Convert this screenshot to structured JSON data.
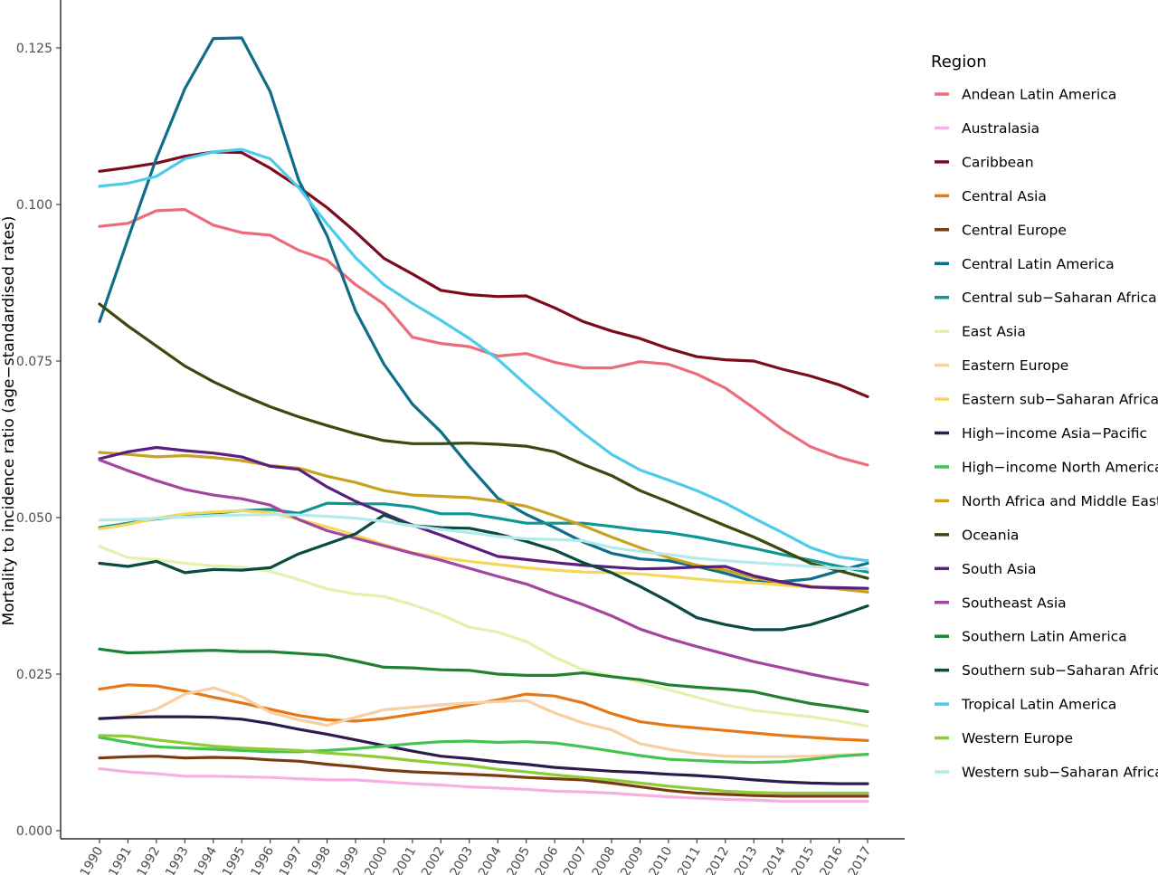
{
  "chart_data": {
    "type": "line",
    "title": "",
    "xlabel": "",
    "ylabel": "Mortality to incidence ratio (age−standardised rates)",
    "ylim": [
      0,
      0.13
    ],
    "yticks": [
      "0.000",
      "0.025",
      "0.050",
      "0.075",
      "0.100",
      "0.125"
    ],
    "ytick_values": [
      0,
      0.025,
      0.05,
      0.075,
      0.1,
      0.125
    ],
    "x": [
      "1990",
      "1991",
      "1992",
      "1993",
      "1994",
      "1995",
      "1996",
      "1997",
      "1998",
      "1999",
      "2000",
      "2001",
      "2002",
      "2003",
      "2004",
      "2005",
      "2006",
      "2007",
      "2008",
      "2009",
      "2010",
      "2011",
      "2012",
      "2013",
      "2014",
      "2015",
      "2016",
      "2017"
    ],
    "grid": false,
    "legend_title": "Region",
    "legend_position": "right",
    "series": [
      {
        "name": "Andean Latin America",
        "color": "#EC6C7C",
        "values": [
          0.0965,
          0.097,
          0.099,
          0.0992,
          0.0967,
          0.0955,
          0.0951,
          0.0927,
          0.0911,
          0.0872,
          0.0841,
          0.0788,
          0.0778,
          0.0773,
          0.0758,
          0.0762,
          0.0748,
          0.0739,
          0.0739,
          0.0749,
          0.0745,
          0.0729,
          0.0707,
          0.0675,
          0.0641,
          0.0613,
          0.0596,
          0.0584
        ]
      },
      {
        "name": "Australasia",
        "color": "#F7B0E2",
        "values": [
          0.0099,
          0.0094,
          0.0091,
          0.0087,
          0.0087,
          0.0086,
          0.0085,
          0.0083,
          0.0081,
          0.0081,
          0.0078,
          0.0075,
          0.0073,
          0.007,
          0.0068,
          0.0066,
          0.0063,
          0.0062,
          0.006,
          0.0057,
          0.0054,
          0.0052,
          0.005,
          0.0049,
          0.0047,
          0.0047,
          0.0047,
          0.0047
        ]
      },
      {
        "name": "Caribbean",
        "color": "#7D0B1E",
        "values": [
          0.1053,
          0.1059,
          0.1066,
          0.1077,
          0.1084,
          0.1083,
          0.1058,
          0.1028,
          0.0995,
          0.0956,
          0.0914,
          0.0889,
          0.0863,
          0.0856,
          0.0853,
          0.0854,
          0.0835,
          0.0813,
          0.0798,
          0.0786,
          0.077,
          0.0757,
          0.0752,
          0.075,
          0.0737,
          0.0726,
          0.0712,
          0.0693
        ]
      },
      {
        "name": "Central Asia",
        "color": "#E67817",
        "values": [
          0.0226,
          0.0233,
          0.0231,
          0.0223,
          0.0213,
          0.0204,
          0.0194,
          0.0184,
          0.0177,
          0.0175,
          0.0179,
          0.0186,
          0.0193,
          0.0201,
          0.0209,
          0.0218,
          0.0215,
          0.0204,
          0.0187,
          0.0174,
          0.0168,
          0.0164,
          0.016,
          0.0156,
          0.0152,
          0.0149,
          0.0146,
          0.0144
        ]
      },
      {
        "name": "Central Europe",
        "color": "#7A3B12",
        "values": [
          0.0116,
          0.0118,
          0.0119,
          0.0116,
          0.0117,
          0.0116,
          0.0113,
          0.0111,
          0.0106,
          0.0102,
          0.0097,
          0.0094,
          0.0092,
          0.009,
          0.0088,
          0.0085,
          0.0083,
          0.0081,
          0.0076,
          0.007,
          0.0064,
          0.006,
          0.0058,
          0.0056,
          0.0055,
          0.0055,
          0.0055,
          0.0055
        ]
      },
      {
        "name": "Central Latin America",
        "color": "#0E6E8A",
        "values": [
          0.0813,
          0.0945,
          0.1074,
          0.1185,
          0.1265,
          0.1266,
          0.118,
          0.1039,
          0.095,
          0.083,
          0.0745,
          0.0681,
          0.0637,
          0.0582,
          0.0531,
          0.0505,
          0.0484,
          0.0461,
          0.0443,
          0.0434,
          0.0431,
          0.0422,
          0.0411,
          0.0398,
          0.0398,
          0.0402,
          0.0415,
          0.0427
        ]
      },
      {
        "name": "Central sub−Saharan Africa",
        "color": "#0D9693",
        "values": [
          0.0484,
          0.0491,
          0.0498,
          0.0502,
          0.0507,
          0.0511,
          0.0513,
          0.0507,
          0.0523,
          0.0522,
          0.0522,
          0.0517,
          0.0506,
          0.0506,
          0.0499,
          0.0491,
          0.0491,
          0.0491,
          0.0486,
          0.048,
          0.0476,
          0.0469,
          0.046,
          0.0451,
          0.0441,
          0.0432,
          0.0422,
          0.0413
        ]
      },
      {
        "name": "East Asia",
        "color": "#E2F2AE",
        "values": [
          0.0454,
          0.0436,
          0.0433,
          0.0427,
          0.0423,
          0.0421,
          0.0414,
          0.0401,
          0.0386,
          0.0378,
          0.0374,
          0.0361,
          0.0345,
          0.0325,
          0.0317,
          0.0302,
          0.0277,
          0.0257,
          0.0248,
          0.0237,
          0.0225,
          0.0213,
          0.0201,
          0.0192,
          0.0187,
          0.0182,
          0.0175,
          0.0167
        ]
      },
      {
        "name": "Eastern Europe",
        "color": "#F7CFA1",
        "values": [
          0.0178,
          0.0183,
          0.0194,
          0.0218,
          0.0228,
          0.0214,
          0.0189,
          0.0177,
          0.0168,
          0.0181,
          0.0193,
          0.0197,
          0.0201,
          0.0204,
          0.0206,
          0.0208,
          0.0188,
          0.0172,
          0.0161,
          0.0139,
          0.013,
          0.0123,
          0.0119,
          0.0118,
          0.0118,
          0.0119,
          0.0121,
          0.0122
        ]
      },
      {
        "name": "Eastern sub−Saharan Africa",
        "color": "#F5D75B",
        "values": [
          0.0482,
          0.0489,
          0.0499,
          0.0506,
          0.0509,
          0.0511,
          0.0508,
          0.0497,
          0.0485,
          0.0472,
          0.0457,
          0.0444,
          0.0436,
          0.043,
          0.0425,
          0.042,
          0.0416,
          0.0413,
          0.0412,
          0.041,
          0.0406,
          0.0402,
          0.0398,
          0.0396,
          0.0392,
          0.0389,
          0.0386,
          0.0385
        ]
      },
      {
        "name": "High−income Asia−Pacific",
        "color": "#2E1B4D",
        "values": [
          0.0179,
          0.0181,
          0.0182,
          0.0182,
          0.0181,
          0.0178,
          0.0171,
          0.0162,
          0.0154,
          0.0145,
          0.0136,
          0.0127,
          0.0119,
          0.0115,
          0.011,
          0.0106,
          0.0101,
          0.0098,
          0.0095,
          0.0093,
          0.009,
          0.0088,
          0.0085,
          0.0081,
          0.0078,
          0.0076,
          0.0075,
          0.0075
        ]
      },
      {
        "name": "High−income North America",
        "color": "#43C353",
        "values": [
          0.0149,
          0.0141,
          0.0134,
          0.0132,
          0.013,
          0.0128,
          0.0126,
          0.0126,
          0.0128,
          0.0131,
          0.0135,
          0.0139,
          0.0142,
          0.0143,
          0.0141,
          0.0142,
          0.014,
          0.0134,
          0.0127,
          0.012,
          0.0114,
          0.0112,
          0.011,
          0.0109,
          0.011,
          0.0114,
          0.0119,
          0.0122
        ]
      },
      {
        "name": "North Africa and Middle East",
        "color": "#C9A221",
        "values": [
          0.0604,
          0.0601,
          0.0597,
          0.0599,
          0.0596,
          0.0591,
          0.0583,
          0.0579,
          0.0566,
          0.0556,
          0.0543,
          0.0536,
          0.0534,
          0.0532,
          0.0526,
          0.0518,
          0.0503,
          0.0487,
          0.0469,
          0.0452,
          0.0436,
          0.0424,
          0.0416,
          0.0404,
          0.0396,
          0.039,
          0.0386,
          0.0381
        ]
      },
      {
        "name": "Oceania",
        "color": "#3A4A0C",
        "values": [
          0.0841,
          0.0806,
          0.0774,
          0.0742,
          0.0717,
          0.0696,
          0.0677,
          0.0661,
          0.0647,
          0.0634,
          0.0623,
          0.0618,
          0.0618,
          0.0619,
          0.0617,
          0.0614,
          0.0605,
          0.0585,
          0.0567,
          0.0543,
          0.0525,
          0.0506,
          0.0487,
          0.0469,
          0.0448,
          0.0427,
          0.0415,
          0.0403
        ]
      },
      {
        "name": "South Asia",
        "color": "#5A1E7E",
        "values": [
          0.0594,
          0.0605,
          0.0612,
          0.0607,
          0.0603,
          0.0597,
          0.0582,
          0.0577,
          0.0549,
          0.0526,
          0.0507,
          0.0488,
          0.0472,
          0.0455,
          0.0438,
          0.0433,
          0.0428,
          0.0424,
          0.0421,
          0.0418,
          0.0419,
          0.0421,
          0.0422,
          0.0407,
          0.0397,
          0.0389,
          0.0388,
          0.0387
        ]
      },
      {
        "name": "Southeast Asia",
        "color": "#A446A0",
        "values": [
          0.0592,
          0.0575,
          0.0559,
          0.0545,
          0.0536,
          0.053,
          0.052,
          0.0497,
          0.0479,
          0.0467,
          0.0455,
          0.0443,
          0.0432,
          0.0419,
          0.0406,
          0.0394,
          0.0377,
          0.0361,
          0.0343,
          0.0322,
          0.0307,
          0.0294,
          0.0282,
          0.027,
          0.026,
          0.025,
          0.0241,
          0.0233
        ]
      },
      {
        "name": "Southern Latin America",
        "color": "#1F8233",
        "values": [
          0.029,
          0.0284,
          0.0285,
          0.0287,
          0.0288,
          0.0286,
          0.0286,
          0.0283,
          0.028,
          0.0271,
          0.0261,
          0.026,
          0.0257,
          0.0256,
          0.025,
          0.0248,
          0.0248,
          0.0252,
          0.0246,
          0.0241,
          0.0233,
          0.0229,
          0.0226,
          0.0222,
          0.0212,
          0.0203,
          0.0197,
          0.019
        ]
      },
      {
        "name": "Southern sub−Saharan Africa",
        "color": "#0A4A42",
        "values": [
          0.0427,
          0.0422,
          0.043,
          0.0412,
          0.0417,
          0.0416,
          0.042,
          0.0442,
          0.0458,
          0.0474,
          0.0504,
          0.0487,
          0.0484,
          0.0483,
          0.0474,
          0.0462,
          0.0448,
          0.0428,
          0.0412,
          0.039,
          0.0366,
          0.034,
          0.0329,
          0.0321,
          0.0321,
          0.0329,
          0.0343,
          0.0359
        ]
      },
      {
        "name": "Tropical Latin America",
        "color": "#4CCBEA",
        "values": [
          0.1029,
          0.1034,
          0.1045,
          0.1073,
          0.1084,
          0.1088,
          0.1073,
          0.1027,
          0.0969,
          0.0915,
          0.0872,
          0.0842,
          0.0815,
          0.0786,
          0.0753,
          0.0712,
          0.0673,
          0.0635,
          0.0601,
          0.0576,
          0.056,
          0.0543,
          0.0523,
          0.0499,
          0.0476,
          0.0452,
          0.0437,
          0.0431
        ]
      },
      {
        "name": "Western Europe",
        "color": "#8DCB37",
        "values": [
          0.0152,
          0.0151,
          0.0145,
          0.014,
          0.0135,
          0.0132,
          0.013,
          0.0128,
          0.0124,
          0.0121,
          0.0117,
          0.0112,
          0.0108,
          0.0104,
          0.0098,
          0.0094,
          0.0089,
          0.0085,
          0.0081,
          0.0076,
          0.0071,
          0.0067,
          0.0063,
          0.0061,
          0.006,
          0.006,
          0.006,
          0.006
        ]
      },
      {
        "name": "Western sub−Saharan Africa",
        "color": "#B5EAEB",
        "values": [
          0.0496,
          0.0497,
          0.0499,
          0.0501,
          0.0503,
          0.0504,
          0.0505,
          0.0504,
          0.0502,
          0.0499,
          0.0494,
          0.0487,
          0.0481,
          0.0476,
          0.047,
          0.0466,
          0.0465,
          0.0463,
          0.0452,
          0.0446,
          0.0441,
          0.0435,
          0.0431,
          0.0428,
          0.0425,
          0.0422,
          0.0419,
          0.0418
        ]
      }
    ]
  }
}
